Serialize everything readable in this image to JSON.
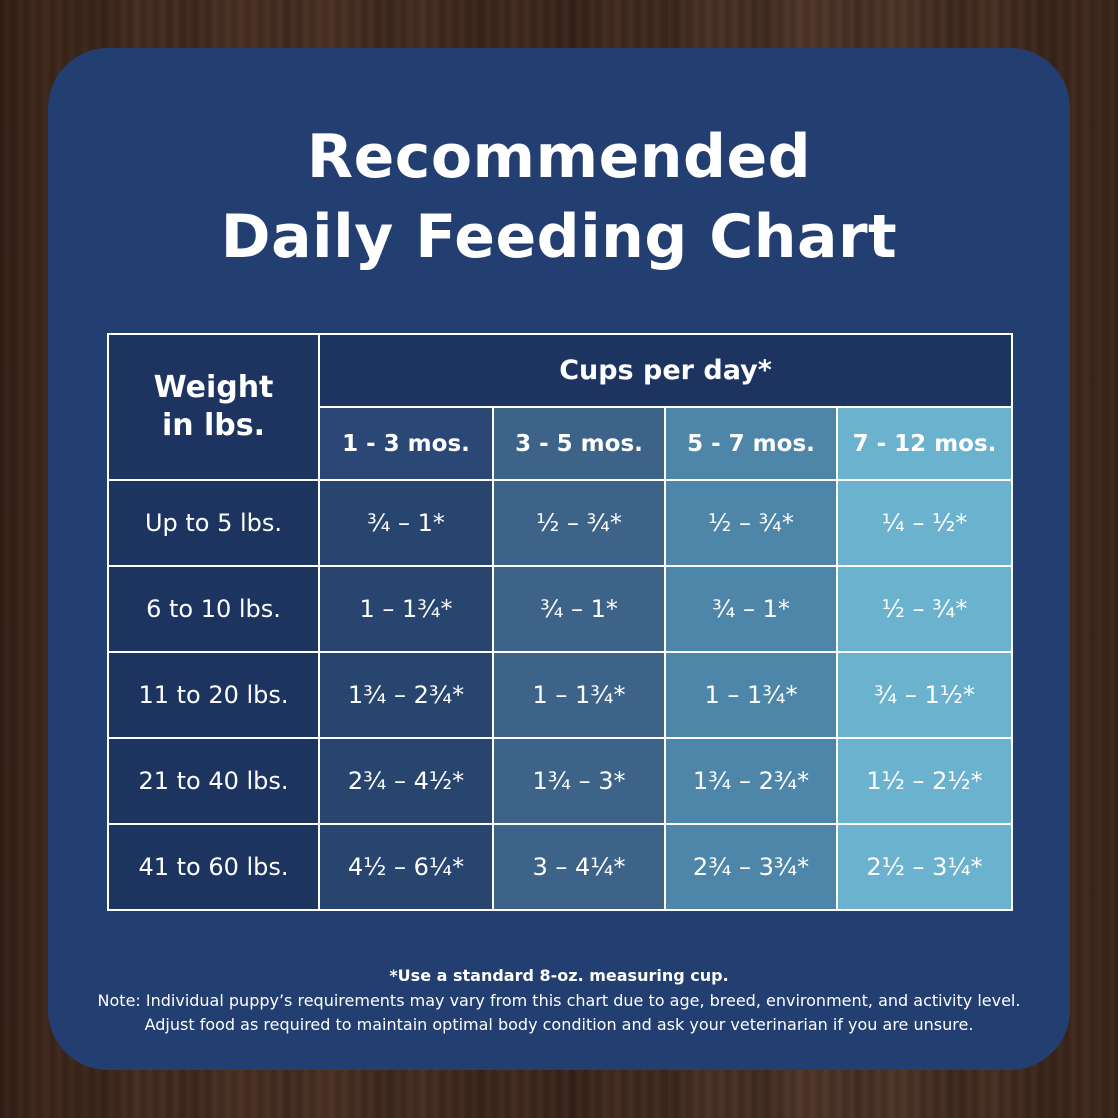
{
  "title_line1": "Recommended",
  "title_line2": "Daily Feeding Chart",
  "chart_data": {
    "type": "table",
    "row_header_label": "Weight in lbs.",
    "column_group_label": "Cups per day*",
    "columns": [
      "1 - 3 mos.",
      "3 - 5 mos.",
      "5 - 7 mos.",
      "7 - 12 mos."
    ],
    "rows": [
      {
        "label": "Up to 5 lbs.",
        "values": [
          "¾ – 1*",
          "½ – ¾*",
          "½ – ¾*",
          "¼ – ½*"
        ]
      },
      {
        "label": "6 to 10 lbs.",
        "values": [
          "1 – 1¾*",
          "¾ – 1*",
          "¾ – 1*",
          "½ – ¾*"
        ]
      },
      {
        "label": "11 to 20 lbs.",
        "values": [
          "1¾ – 2¾*",
          "1 – 1¾*",
          "1 – 1¾*",
          "¾ – 1½*"
        ]
      },
      {
        "label": "21 to 40 lbs.",
        "values": [
          "2¾ – 4½*",
          "1¾ – 3*",
          "1¾ – 2¾*",
          "1½ – 2½*"
        ]
      },
      {
        "label": "41 to 60 lbs.",
        "values": [
          "4½ – 6¼*",
          "3 – 4¼*",
          "2¾ – 3¾*",
          "2½ – 3¼*"
        ]
      }
    ]
  },
  "footnote": "*Use a standard 8-oz. measuring cup.",
  "note_line1": "Note: Individual puppy’s requirements may vary from this chart due to age, breed, environment, and activity level.",
  "note_line2": "Adjust food as required to maintain optimal body condition and ask your veterinarian if you are unsure."
}
